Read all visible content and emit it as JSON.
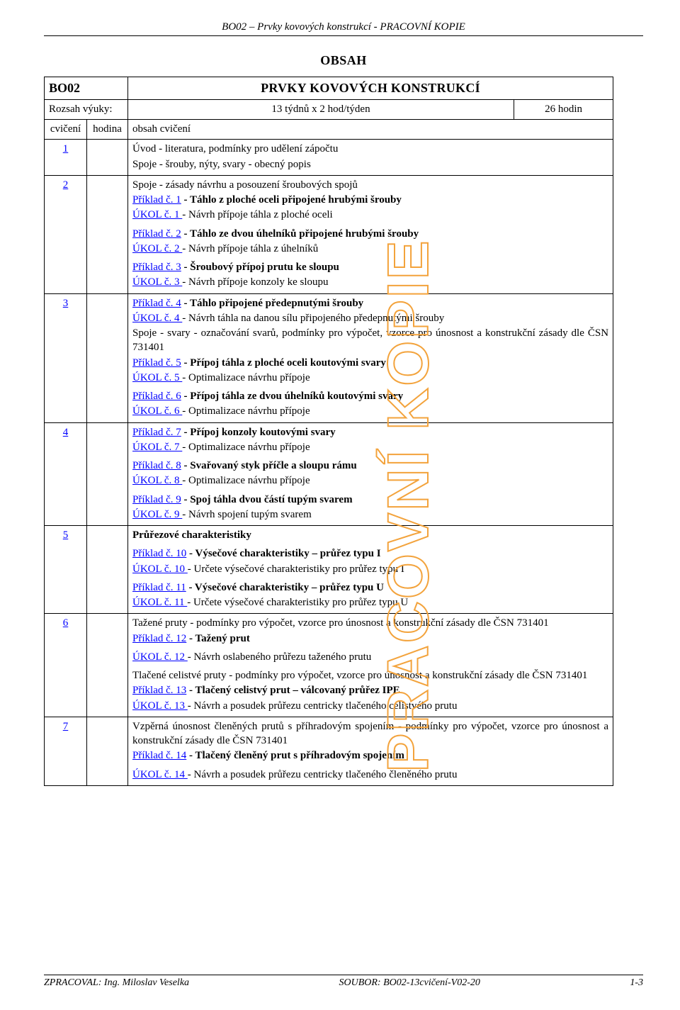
{
  "doc": {
    "header": "BO02 – Prvky kovových konstrukcí  - PRACOVNÍ KOPIE",
    "obsah": "OBSAH",
    "watermark": "PRACOVNÍ KOPIE",
    "footer": {
      "left": "ZPRACOVAL: Ing. Miloslav Veselka",
      "mid": "SOUBOR: BO02-13cvičení-V02-20",
      "right": "1-3"
    },
    "colors": {
      "link": "#0000ff",
      "text": "#000000",
      "border": "#000000",
      "watermark_stroke": "#f3a33c",
      "background": "#ffffff"
    }
  },
  "table": {
    "code": "BO02",
    "title": "PRVKY KOVOVÝCH KONSTRUKCÍ",
    "schedule": {
      "range_label": "Rozsah výuky:",
      "weeks": "13 týdnů x 2 hod/týden",
      "hours": "26 hodin"
    },
    "labels": {
      "c1": "cvičení",
      "c2": "hodina",
      "c3": "obsah cvičení"
    },
    "rows": [
      {
        "num": "1",
        "items": [
          {
            "text": "Úvod - literatura, podmínky pro udělení zápočtu"
          },
          {
            "text": "Spoje - šrouby, nýty, svary - obecný popis"
          }
        ]
      },
      {
        "num": "2",
        "items": [
          {
            "text": "Spoje - zásady návrhu a posouzení šroubových spojů"
          },
          {
            "link": "Příklad č. 1",
            "bold_after": " - Táhlo z ploché oceli  připojené hrubými šrouby"
          },
          {
            "link": "ÚKOL č. 1 ",
            "after": " - Návrh přípoje táhla z ploché oceli"
          },
          {
            "gap": true
          },
          {
            "link": "Příklad č. 2",
            "bold_after": " - Táhlo ze dvou úhelníků  připojené hrubými šrouby"
          },
          {
            "link": "ÚKOL č. 2 ",
            "after": " - Návrh přípoje táhla z úhelníků"
          },
          {
            "gap": true
          },
          {
            "link": "Příklad č. 3",
            "bold_after": " - Šroubový přípoj prutu ke sloupu"
          },
          {
            "link": "ÚKOL č. 3 ",
            "after": " - Návrh přípoje konzoly ke sloupu"
          }
        ]
      },
      {
        "num": "3",
        "items": [
          {
            "link": "Příklad č. 4",
            "bold_after": " -  Táhlo připojené předepnutými šrouby"
          },
          {
            "link": "ÚKOL č. 4 ",
            "after": " - Návrh táhla na danou sílu připojeného předepnutými šrouby"
          },
          {
            "text": "Spoje - svary - označování svarů, podmínky pro výpočet, vzorce pro únosnost a konstrukční zásady dle ČSN 731401"
          },
          {
            "link": "Příklad č. 5",
            "bold_after": " - Přípoj táhla  z ploché oceli koutovými svary"
          },
          {
            "link": "ÚKOL č. 5 ",
            "after": " - Optimalizace návrhu přípoje"
          },
          {
            "gap": true
          },
          {
            "link": "Příklad č. 6",
            "bold_after": " - Přípoj táhla ze dvou úhelníků koutovými svary"
          },
          {
            "link": "ÚKOL č. 6 ",
            "after": " - Optimalizace návrhu přípoje"
          }
        ]
      },
      {
        "num": "4",
        "items": [
          {
            "link": "Příklad č. 7",
            "bold_after": " - Přípoj konzoly koutovými svary"
          },
          {
            "link": "ÚKOL č. 7 ",
            "after": " - Optimalizace návrhu přípoje"
          },
          {
            "gap": true
          },
          {
            "link": "Příklad č. 8",
            "bold_after": " - Svařovaný styk příčle a sloupu rámu"
          },
          {
            "link": "ÚKOL č. 8 ",
            "after": " - Optimalizace návrhu přípoje"
          },
          {
            "gap": true
          },
          {
            "link": "Příklad č. 9",
            "bold_after": " - Spoj táhla dvou částí  tupým svarem"
          },
          {
            "link": "ÚKOL č. 9 ",
            "after": " - Návrh spojení tupým svarem"
          }
        ]
      },
      {
        "num": "5",
        "items": [
          {
            "bold": " Průřezové charakteristiky"
          },
          {
            "gap": true
          },
          {
            "link": "Příklad č. 10",
            "bold_after": " - Výsečové charakteristiky – průřez typu I"
          },
          {
            "link": "ÚKOL č. 10 ",
            "after": " - Určete výsečové charakteristiky pro průřez typu I"
          },
          {
            "gap": true
          },
          {
            "link": "Příklad č. 11",
            "bold_after": " - Výsečové charakteristiky – průřez typu U"
          },
          {
            "link": "ÚKOL č. 11 ",
            "after": " - Určete výsečové charakteristiky pro průřez typu U"
          }
        ]
      },
      {
        "num": "6",
        "items": [
          {
            "text": "Tažené pruty - podmínky pro výpočet, vzorce pro únosnost a konstrukční zásady dle ČSN 731401"
          },
          {
            "link": "Příklad č. 12",
            "bold_after": " - Tažený prut"
          },
          {
            "gap": true
          },
          {
            "link": "ÚKOL č. 12 ",
            "after": " - Návrh oslabeného průřezu taženého prutu"
          },
          {
            "gap": true
          },
          {
            "text": "Tlačené celistvé pruty - podmínky pro výpočet, vzorce pro únosnost a konstrukční zásady dle ČSN 731401"
          },
          {
            "link": "Příklad č. 13",
            "bold_after": " - Tlačený celistvý prut – válcovaný průřez IPE"
          },
          {
            "link": "ÚKOL č. 13 ",
            "after": " - Návrh a posudek průřezu centricky tlačeného celistvého prutu"
          }
        ]
      },
      {
        "num": "7",
        "items": [
          {
            "text": "Vzpěrná únosnost členěných prutů s příhradovým spojením - podmínky pro výpočet, vzorce pro únosnost a konstrukční zásady dle ČSN 731401"
          },
          {
            "link": "Příklad č. 14",
            "bold_after": " - Tlačený členěný prut s příhradovým spojením"
          },
          {
            "gap": true
          },
          {
            "link": "ÚKOL č. 14 ",
            "after": " - Návrh a posudek průřezu centricky tlačeného členěného prutu"
          }
        ]
      }
    ]
  }
}
